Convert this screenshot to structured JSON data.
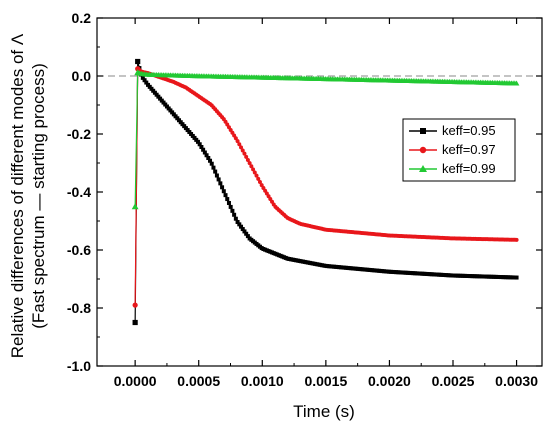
{
  "chart_data": {
    "type": "line",
    "xlabel": "Time (s)",
    "ylabel_lines": [
      "Relative differences of different modes of Λ",
      "(Fast spectrum — starting process)"
    ],
    "xlim": [
      -0.0003,
      0.0032
    ],
    "ylim": [
      -1.0,
      0.2
    ],
    "x_ticks": [
      0,
      0.0005,
      0.001,
      0.0015,
      0.002,
      0.0025,
      0.003
    ],
    "x_tick_labels": [
      "0.0000",
      "0.0005",
      "0.0010",
      "0.0015",
      "0.0020",
      "0.0025",
      "0.0030"
    ],
    "y_ticks": [
      0.2,
      0.0,
      -0.2,
      -0.4,
      -0.6,
      -0.8,
      -1.0
    ],
    "y_tick_labels": [
      "0.2",
      "0.0",
      "-0.2",
      "-0.4",
      "-0.6",
      "-0.8",
      "-1.0"
    ],
    "reference_line": {
      "y": 0.0,
      "style": "dashed",
      "color": "#888888"
    },
    "legend_position": "right",
    "series": [
      {
        "name": "keff=0.95",
        "color": "#000000",
        "marker": "square",
        "points": [
          [
            0.0,
            -0.85
          ],
          [
            2e-05,
            0.05
          ],
          [
            5e-05,
            0.0
          ],
          [
            0.0001,
            -0.03
          ],
          [
            0.0002,
            -0.08
          ],
          [
            0.0003,
            -0.13
          ],
          [
            0.0004,
            -0.18
          ],
          [
            0.0005,
            -0.23
          ],
          [
            0.0006,
            -0.3
          ],
          [
            0.0007,
            -0.4
          ],
          [
            0.0008,
            -0.5
          ],
          [
            0.0009,
            -0.56
          ],
          [
            0.001,
            -0.595
          ],
          [
            0.0012,
            -0.63
          ],
          [
            0.0015,
            -0.655
          ],
          [
            0.002,
            -0.675
          ],
          [
            0.0025,
            -0.688
          ],
          [
            0.003,
            -0.695
          ]
        ]
      },
      {
        "name": "keff=0.97",
        "color": "#e8171b",
        "marker": "circle",
        "points": [
          [
            0.0,
            -0.79
          ],
          [
            2e-05,
            0.025
          ],
          [
            5e-05,
            0.015
          ],
          [
            0.0001,
            0.01
          ],
          [
            0.0002,
            -0.005
          ],
          [
            0.0003,
            -0.02
          ],
          [
            0.0004,
            -0.04
          ],
          [
            0.0005,
            -0.07
          ],
          [
            0.0006,
            -0.1
          ],
          [
            0.0007,
            -0.15
          ],
          [
            0.0008,
            -0.22
          ],
          [
            0.0009,
            -0.3
          ],
          [
            0.001,
            -0.38
          ],
          [
            0.0011,
            -0.45
          ],
          [
            0.0012,
            -0.49
          ],
          [
            0.0013,
            -0.51
          ],
          [
            0.0015,
            -0.53
          ],
          [
            0.002,
            -0.55
          ],
          [
            0.0025,
            -0.56
          ],
          [
            0.003,
            -0.565
          ]
        ]
      },
      {
        "name": "keff=0.99",
        "color": "#22c933",
        "marker": "triangle",
        "points": [
          [
            0.0,
            -0.45
          ],
          [
            2e-05,
            0.012
          ],
          [
            5e-05,
            0.008
          ],
          [
            0.0001,
            0.005
          ],
          [
            0.0005,
            0.0
          ],
          [
            0.001,
            -0.005
          ],
          [
            0.0015,
            -0.01
          ],
          [
            0.002,
            -0.015
          ],
          [
            0.0025,
            -0.02
          ],
          [
            0.003,
            -0.025
          ]
        ]
      }
    ]
  }
}
